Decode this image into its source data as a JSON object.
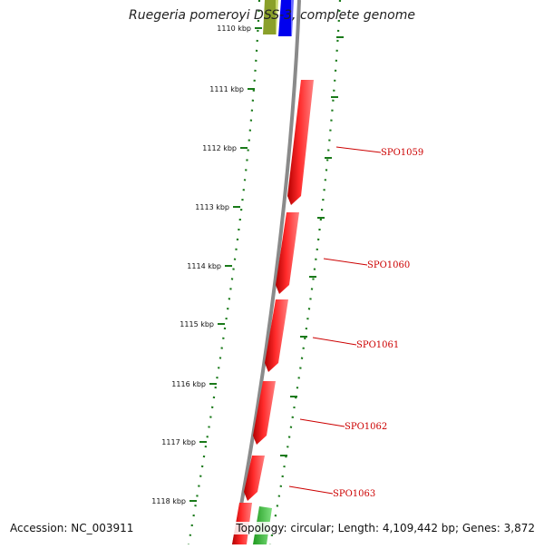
{
  "title": "Ruegeria pomeroyi DSS-3, complete genome",
  "footer": {
    "accession": "Accession: NC_003911",
    "summary": "Topology: circular; Length: 4,109,442 bp; Genes: 3,872"
  },
  "colors": {
    "backbone": "#8a8a8a",
    "tick": "#1a7a1a",
    "gene": "#ff0000",
    "gene_label": "#cc0000",
    "olive_feature": "#8aa02a",
    "blue_feature": "#0000ee",
    "green_feature": "#33cc33"
  },
  "ruler": {
    "ticks": [
      "1110 kbp",
      "1111 kbp",
      "1112 kbp",
      "1113 kbp",
      "1114 kbp",
      "1115 kbp",
      "1116 kbp",
      "1117 kbp",
      "1118 kbp"
    ]
  },
  "genes": [
    {
      "label": "SPO1059",
      "strand": "reverse"
    },
    {
      "label": "SPO1060",
      "strand": "reverse"
    },
    {
      "label": "SPO1061",
      "strand": "reverse"
    },
    {
      "label": "SPO1062",
      "strand": "reverse"
    },
    {
      "label": "SPO1063",
      "strand": "reverse"
    }
  ]
}
